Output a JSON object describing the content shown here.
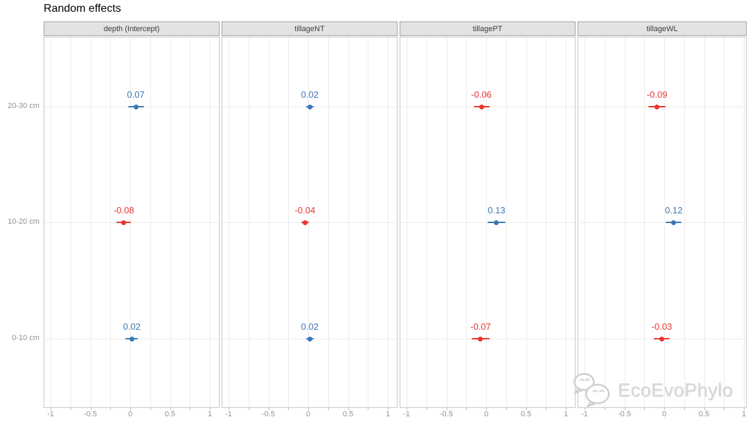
{
  "page": {
    "watermark": {
      "text": "EcoEvoPhylo",
      "icon": "wechat-logo"
    }
  },
  "chart_data": {
    "type": "scatter",
    "subtype": "faceted dot-whisker forest plot (random effects)",
    "title": "Random effects",
    "categories_top_to_bottom": [
      "20-30 cm",
      "10-20 cm",
      "0-10 cm"
    ],
    "x_axis": {
      "tick_labels": [
        "-1",
        "-0.5",
        "0",
        "0.5",
        "1"
      ],
      "tick_values": [
        -1,
        -0.5,
        0,
        0.5,
        1
      ],
      "range": [
        -1.1,
        1.1
      ],
      "grid_step": 0.25,
      "grid": "on"
    },
    "legend": "point color encodes sign: blue = positive estimate, red = negative estimate",
    "facets": [
      {
        "label": "depth (Intercept)",
        "points": [
          {
            "category": "20-30 cm",
            "value": 0.07,
            "label": "0.07",
            "ci_half_width": 0.1,
            "sign": "positive"
          },
          {
            "category": "10-20 cm",
            "value": -0.08,
            "label": "-0.08",
            "ci_half_width": 0.09,
            "sign": "negative"
          },
          {
            "category": "0-10 cm",
            "value": 0.02,
            "label": "0.02",
            "ci_half_width": 0.08,
            "sign": "positive"
          }
        ]
      },
      {
        "label": "tillageNT",
        "points": [
          {
            "category": "20-30 cm",
            "value": 0.02,
            "label": "0.02",
            "ci_half_width": 0.05,
            "sign": "positive"
          },
          {
            "category": "10-20 cm",
            "value": -0.04,
            "label": "-0.04",
            "ci_half_width": 0.05,
            "sign": "negative"
          },
          {
            "category": "0-10 cm",
            "value": 0.02,
            "label": "0.02",
            "ci_half_width": 0.05,
            "sign": "positive"
          }
        ]
      },
      {
        "label": "tillagePT",
        "points": [
          {
            "category": "20-30 cm",
            "value": -0.06,
            "label": "-0.06",
            "ci_half_width": 0.1,
            "sign": "negative"
          },
          {
            "category": "10-20 cm",
            "value": 0.13,
            "label": "0.13",
            "ci_half_width": 0.11,
            "sign": "positive"
          },
          {
            "category": "0-10 cm",
            "value": -0.07,
            "label": "-0.07",
            "ci_half_width": 0.11,
            "sign": "negative"
          }
        ]
      },
      {
        "label": "tillageWL",
        "points": [
          {
            "category": "20-30 cm",
            "value": -0.09,
            "label": "-0.09",
            "ci_half_width": 0.11,
            "sign": "negative"
          },
          {
            "category": "10-20 cm",
            "value": 0.12,
            "label": "0.12",
            "ci_half_width": 0.1,
            "sign": "positive"
          },
          {
            "category": "0-10 cm",
            "value": -0.03,
            "label": "-0.03",
            "ci_half_width": 0.1,
            "sign": "negative"
          }
        ]
      }
    ],
    "colors": {
      "positive_point": "#3a77b5",
      "negative_point": "#e8352c",
      "grid": "#ececec",
      "panel_border": "#c8c8c8",
      "strip_bg": "#e3e3e3",
      "strip_border": "#a3a3a3",
      "axis_text": "#919191",
      "strip_text": "#3d3d3d",
      "watermark_text": "#d6d6d6"
    }
  }
}
